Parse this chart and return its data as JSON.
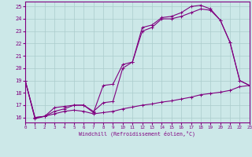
{
  "xlabel": "Windchill (Refroidissement éolien,°C)",
  "background_color": "#cce8e8",
  "line_color": "#800080",
  "grid_color": "#aacccc",
  "xlim": [
    0,
    23
  ],
  "ylim": [
    15.6,
    25.4
  ],
  "xticks": [
    0,
    1,
    2,
    3,
    4,
    5,
    6,
    7,
    8,
    9,
    10,
    11,
    12,
    13,
    14,
    15,
    16,
    17,
    18,
    19,
    20,
    21,
    22,
    23
  ],
  "yticks": [
    16,
    17,
    18,
    19,
    20,
    21,
    22,
    23,
    24,
    25
  ],
  "line1_x": [
    0,
    1,
    2,
    3,
    4,
    5,
    6,
    7,
    8,
    9,
    10,
    11,
    12,
    13,
    14,
    15,
    16,
    17,
    18,
    19,
    20,
    21,
    22,
    23
  ],
  "line1_y": [
    19.0,
    16.0,
    16.1,
    16.8,
    16.9,
    17.0,
    17.0,
    16.4,
    18.6,
    18.7,
    20.3,
    20.5,
    23.3,
    23.5,
    24.1,
    24.2,
    24.5,
    25.0,
    25.1,
    24.8,
    23.9,
    22.1,
    19.0,
    18.6
  ],
  "line2_x": [
    0,
    1,
    2,
    3,
    4,
    5,
    6,
    7,
    8,
    9,
    10,
    11,
    12,
    13,
    14,
    15,
    16,
    17,
    18,
    19,
    20,
    21,
    22,
    23
  ],
  "line2_y": [
    19.0,
    16.0,
    16.1,
    16.5,
    16.7,
    17.0,
    17.0,
    16.5,
    17.2,
    17.3,
    20.0,
    20.5,
    23.0,
    23.3,
    24.0,
    24.0,
    24.2,
    24.5,
    24.8,
    24.7,
    23.9,
    22.1,
    19.0,
    18.6
  ],
  "line3_x": [
    0,
    1,
    2,
    3,
    4,
    5,
    6,
    7,
    8,
    9,
    10,
    11,
    12,
    13,
    14,
    15,
    16,
    17,
    18,
    19,
    20,
    21,
    22,
    23
  ],
  "line3_y": [
    19.0,
    15.9,
    16.1,
    16.3,
    16.5,
    16.6,
    16.5,
    16.3,
    16.4,
    16.5,
    16.7,
    16.85,
    17.0,
    17.1,
    17.25,
    17.35,
    17.5,
    17.65,
    17.85,
    17.95,
    18.05,
    18.2,
    18.5,
    18.6
  ]
}
